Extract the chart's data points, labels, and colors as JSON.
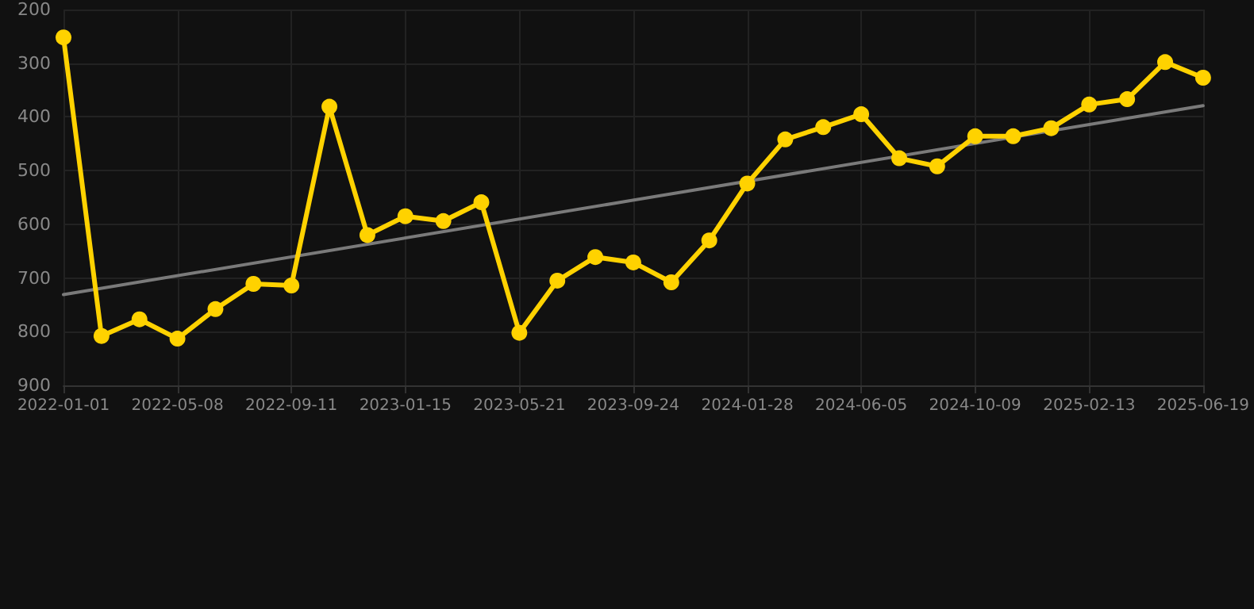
{
  "chart_data": {
    "type": "line",
    "categories": [
      "2022-01-01",
      null,
      null,
      "2022-05-08",
      null,
      null,
      "2022-09-11",
      null,
      null,
      "2023-01-15",
      null,
      null,
      "2023-05-21",
      null,
      null,
      "2023-09-24",
      null,
      null,
      "2024-01-28",
      null,
      null,
      "2024-06-05",
      null,
      null,
      "2024-10-09",
      null,
      null,
      "2025-02-13",
      null,
      null,
      "2025-06-19"
    ],
    "series": [
      {
        "color": "#ffd200",
        "marker": "circle",
        "values": [
          252,
          808,
          777,
          813,
          758,
          711,
          714,
          381,
          620,
          585,
          594,
          559,
          802,
          705,
          661,
          671,
          708,
          630,
          524,
          442,
          419,
          395,
          477,
          492,
          436,
          436,
          421,
          377,
          367,
          298,
          327
        ]
      },
      {
        "type": "line",
        "color": "#7a7a7a",
        "marker": "none",
        "values": [
          731,
          null,
          null,
          null,
          null,
          null,
          null,
          null,
          null,
          null,
          null,
          null,
          null,
          null,
          null,
          null,
          null,
          null,
          null,
          null,
          null,
          null,
          null,
          null,
          null,
          null,
          null,
          null,
          null,
          null,
          379
        ]
      }
    ],
    "ylim": [
      900,
      200
    ],
    "yticks": [
      200,
      300,
      400,
      500,
      600,
      700,
      800,
      900
    ],
    "grid": true
  }
}
